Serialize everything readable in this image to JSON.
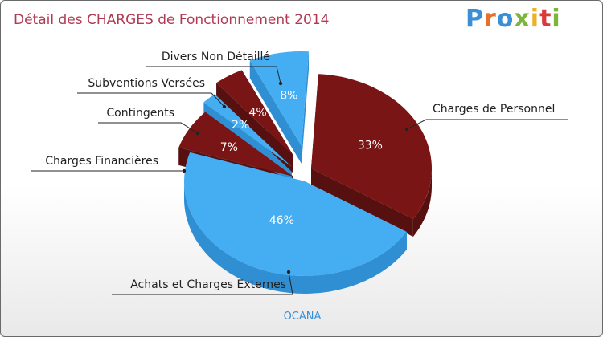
{
  "header": {
    "title": "Détail des CHARGES de Fonctionnement 2014",
    "logo_text": "Proxiti"
  },
  "footer": {
    "commune": "OCANA"
  },
  "colors": {
    "dark_red": "#7a1515",
    "dark_red_side": "#561010",
    "blue": "#45aef2",
    "blue_side": "#2f8fd2"
  },
  "chart_data": {
    "type": "pie",
    "title": "Détail des CHARGES de Fonctionnement 2014",
    "slices": [
      {
        "label": "Charges de Personnel",
        "value": 33,
        "pct_label": "33%",
        "color": "#7a1515"
      },
      {
        "label": "Achats et Charges Externes",
        "value": 46,
        "pct_label": "46%",
        "color": "#45aef2"
      },
      {
        "label": "Charges Financières",
        "value": 7,
        "pct_label": "7%",
        "color": "#7a1515"
      },
      {
        "label": "Contingents",
        "value": 2,
        "pct_label": "2%",
        "color": "#45aef2"
      },
      {
        "label": "Subventions Versées",
        "value": 4,
        "pct_label": "4%",
        "color": "#7a1515"
      },
      {
        "label": "Divers Non Détaillé",
        "value": 8,
        "pct_label": "8%",
        "color": "#45aef2"
      }
    ]
  }
}
